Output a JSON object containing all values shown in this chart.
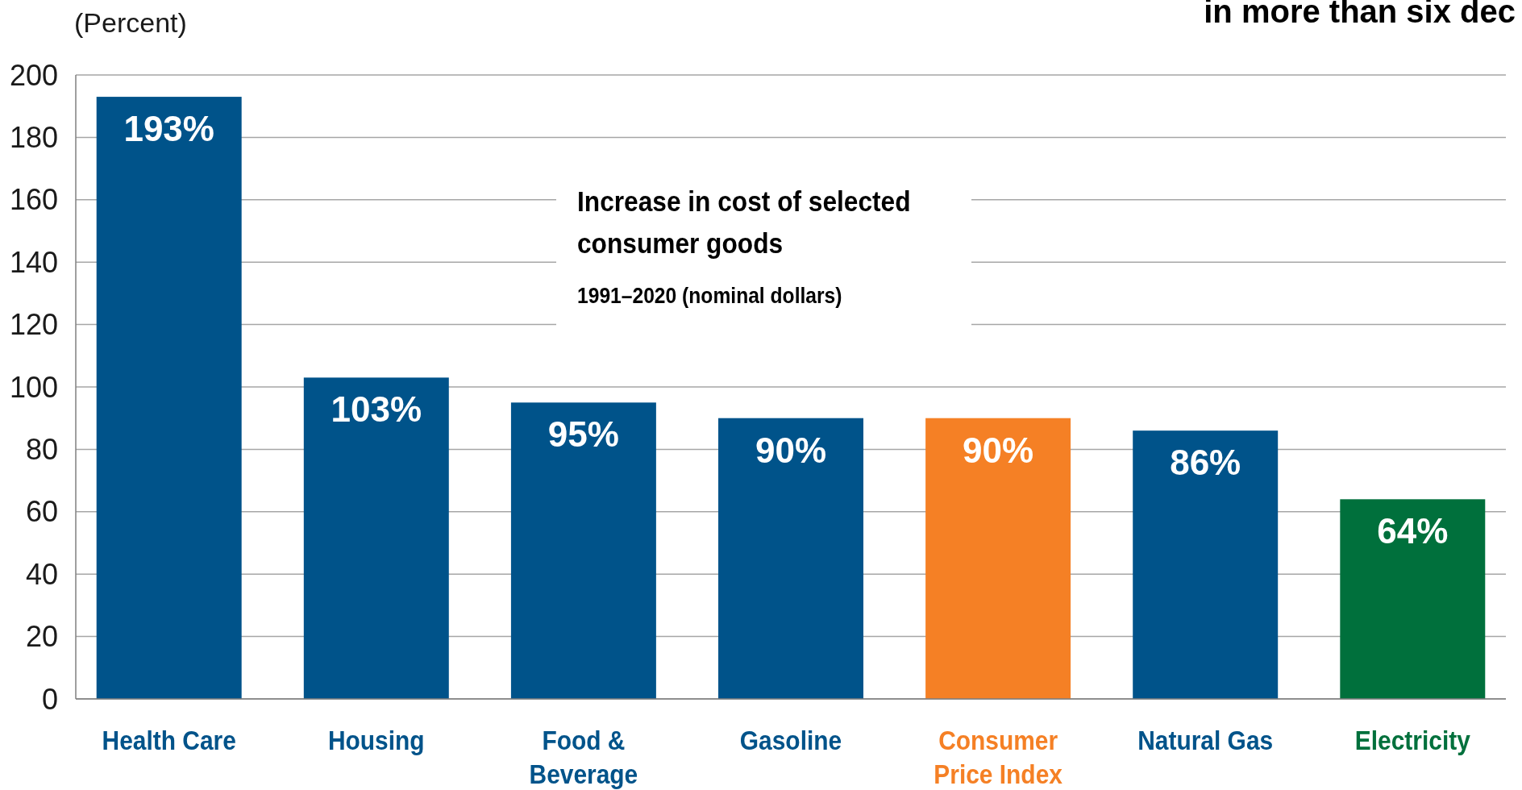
{
  "chart_data": {
    "type": "bar",
    "title": "in more than six dec",
    "ylabel": "(Percent)",
    "annotations": [
      "Increase in cost of selected consumer goods",
      "1991–2020 (nominal dollars)"
    ],
    "categories": [
      "Health Care",
      "Housing",
      "Food & Beverage",
      "Gasoline",
      "Consumer Price Index",
      "Natural Gas",
      "Electricity"
    ],
    "values": [
      193,
      103,
      95,
      90,
      90,
      86,
      64
    ],
    "colors": [
      "#00538a",
      "#00538a",
      "#00538a",
      "#00538a",
      "#f58025",
      "#00538a",
      "#00703c"
    ],
    "value_labels": [
      "193%",
      "103%",
      "95%",
      "90%",
      "90%",
      "86%",
      "64%"
    ],
    "ylim": [
      0,
      200
    ],
    "yticks": [
      0,
      20,
      40,
      60,
      80,
      100,
      120,
      140,
      160,
      180,
      200
    ],
    "grid": "y"
  }
}
